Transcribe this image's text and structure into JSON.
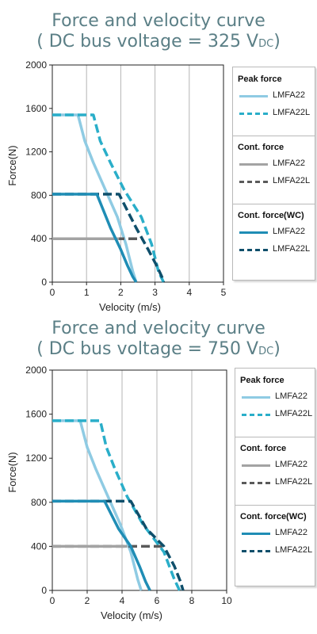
{
  "chart_data": [
    {
      "type": "line",
      "title": "Force and velocity curve",
      "subtitle_prefix": "( DC bus voltage = 325 V",
      "subtitle_sub": "DC",
      "subtitle_suffix": ")",
      "xlabel": "Velocity (m/s)",
      "ylabel": "Force(N)",
      "xlim": [
        0,
        5
      ],
      "ylim": [
        0,
        2000
      ],
      "xticks": [
        "0",
        "1",
        "2",
        "3",
        "4",
        "5"
      ],
      "yticks": [
        "0",
        "400",
        "800",
        "1200",
        "1600",
        "2000"
      ],
      "grid": "vertical",
      "legend": [
        {
          "heading": "Peak force",
          "items": [
            {
              "label": "LMFA22",
              "color": "#8fcbe3",
              "dash": false
            },
            {
              "label": "LMFA22L",
              "color": "#2aaec9",
              "dash": true
            }
          ]
        },
        {
          "heading": "Cont. force",
          "items": [
            {
              "label": "LMFA22",
              "color": "#a3a3a3",
              "dash": false
            },
            {
              "label": "LMFA22L",
              "color": "#5a5a5a",
              "dash": true
            }
          ]
        },
        {
          "heading": "Cont. force(WC)",
          "items": [
            {
              "label": "LMFA22",
              "color": "#1f8db5",
              "dash": false
            },
            {
              "label": "LMFA22L",
              "color": "#0f4f6b",
              "dash": true
            }
          ]
        }
      ],
      "series": [
        {
          "color": "#8fcbe3",
          "dash": false,
          "x": [
            0,
            0.75,
            0.95,
            1.2,
            1.55,
            1.9,
            2.15,
            2.35,
            2.45
          ],
          "y": [
            1540,
            1540,
            1300,
            1100,
            850,
            600,
            350,
            100,
            0
          ]
        },
        {
          "color": "#2aaec9",
          "dash": true,
          "x": [
            0,
            1.2,
            1.4,
            1.7,
            2.1,
            2.6,
            2.9,
            3.1,
            3.25
          ],
          "y": [
            1540,
            1540,
            1300,
            1100,
            850,
            600,
            350,
            100,
            0
          ]
        },
        {
          "color": "#5a5a5a",
          "dash": true,
          "x": [
            0,
            2.65
          ],
          "y": [
            400,
            400
          ]
        },
        {
          "color": "#a3a3a3",
          "dash": false,
          "x": [
            0,
            1.95
          ],
          "y": [
            400,
            400
          ]
        },
        {
          "color": "#0f4f6b",
          "dash": true,
          "x": [
            0,
            1.95,
            2.45,
            2.8,
            3.05,
            3.2,
            3.25
          ],
          "y": [
            810,
            810,
            500,
            300,
            150,
            50,
            0
          ]
        },
        {
          "color": "#1f8db5",
          "dash": false,
          "x": [
            0,
            1.3,
            1.7,
            2.0,
            2.2,
            2.35,
            2.45
          ],
          "y": [
            810,
            810,
            500,
            300,
            150,
            50,
            0
          ]
        }
      ]
    },
    {
      "type": "line",
      "title": "Force and velocity curve",
      "subtitle_prefix": "( DC bus voltage = 750 V",
      "subtitle_sub": "DC",
      "subtitle_suffix": ")",
      "xlabel": "Velocity (m/s)",
      "ylabel": "Force(N)",
      "xlim": [
        0,
        10
      ],
      "ylim": [
        0,
        2000
      ],
      "xticks": [
        "0",
        "2",
        "4",
        "6",
        "8",
        "10"
      ],
      "yticks": [
        "0",
        "400",
        "800",
        "1200",
        "1600",
        "2000"
      ],
      "grid": "vertical",
      "legend": [
        {
          "heading": "Peak force",
          "items": [
            {
              "label": "LMFA22",
              "color": "#8fcbe3",
              "dash": false
            },
            {
              "label": "LMFA22L",
              "color": "#2aaec9",
              "dash": true
            }
          ]
        },
        {
          "heading": "Cont. force",
          "items": [
            {
              "label": "LMFA22",
              "color": "#a3a3a3",
              "dash": false
            },
            {
              "label": "LMFA22L",
              "color": "#5a5a5a",
              "dash": true
            }
          ]
        },
        {
          "heading": "Cont. force(WC)",
          "items": [
            {
              "label": "LMFA22",
              "color": "#1f8db5",
              "dash": false
            },
            {
              "label": "LMFA22L",
              "color": "#0f4f6b",
              "dash": true
            }
          ]
        }
      ],
      "series": [
        {
          "color": "#8fcbe3",
          "dash": false,
          "x": [
            0,
            1.6,
            2.0,
            2.5,
            3.2,
            3.9,
            4.5,
            4.9,
            5.1
          ],
          "y": [
            1540,
            1540,
            1300,
            1100,
            850,
            600,
            350,
            100,
            0
          ]
        },
        {
          "color": "#2aaec9",
          "dash": true,
          "x": [
            0,
            2.75,
            3.1,
            3.6,
            4.3,
            5.2,
            6.4,
            7.0,
            7.3
          ],
          "y": [
            1540,
            1540,
            1300,
            1100,
            850,
            600,
            350,
            100,
            0
          ]
        },
        {
          "color": "#5a5a5a",
          "dash": true,
          "x": [
            0,
            6.3
          ],
          "y": [
            400,
            400
          ]
        },
        {
          "color": "#a3a3a3",
          "dash": false,
          "x": [
            0,
            4.3
          ],
          "y": [
            400,
            400
          ]
        },
        {
          "color": "#0f4f6b",
          "dash": true,
          "x": [
            0,
            4.5,
            5.4,
            6.4,
            7.0,
            7.35,
            7.5
          ],
          "y": [
            810,
            810,
            560,
            400,
            220,
            80,
            0
          ]
        },
        {
          "color": "#1f8db5",
          "dash": false,
          "x": [
            0,
            3.0,
            3.8,
            4.5,
            5.0,
            5.35,
            5.6
          ],
          "y": [
            810,
            810,
            560,
            400,
            220,
            80,
            0
          ]
        }
      ]
    }
  ]
}
